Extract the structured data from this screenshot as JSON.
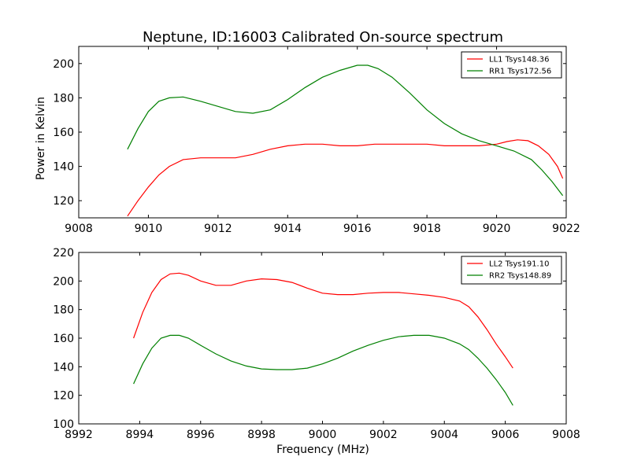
{
  "figure": {
    "title": "Neptune, ID:16003 Calibrated On-source spectrum"
  },
  "chart_data": [
    {
      "type": "line",
      "title": "Neptune, ID:16003 Calibrated On-source spectrum",
      "xlabel": "",
      "ylabel": "Power in Kelvin",
      "xlim": [
        9008,
        9022
      ],
      "ylim": [
        110,
        210
      ],
      "xticks": [
        "9008",
        "9010",
        "9012",
        "9014",
        "9016",
        "9018",
        "9020",
        "9022"
      ],
      "yticks": [
        "120",
        "140",
        "160",
        "180",
        "200"
      ],
      "legend_position": "upper-right",
      "grid": false,
      "series": [
        {
          "name": "LL1 Tsys148.36",
          "color": "#ff0000",
          "x": [
            9009.4,
            9009.7,
            9010.0,
            9010.3,
            9010.6,
            9011.0,
            9011.5,
            9012.0,
            9012.5,
            9013.0,
            9013.5,
            9014.0,
            9014.5,
            9015.0,
            9015.5,
            9016.0,
            9016.5,
            9017.0,
            9017.5,
            9018.0,
            9018.5,
            9019.0,
            9019.5,
            9020.0,
            9020.3,
            9020.6,
            9020.9,
            9021.2,
            9021.5,
            9021.75,
            9021.9
          ],
          "y": [
            111,
            120,
            128,
            135,
            140,
            144,
            145,
            145,
            145,
            147,
            150,
            152,
            153,
            153,
            152,
            152,
            153,
            153,
            153,
            153,
            152,
            152,
            152,
            153,
            154.5,
            155.5,
            155,
            152,
            147,
            140,
            133
          ]
        },
        {
          "name": "RR1 Tsys172.56",
          "color": "#008000",
          "x": [
            9009.4,
            9009.7,
            9010.0,
            9010.3,
            9010.6,
            9011.0,
            9011.5,
            9012.0,
            9012.5,
            9013.0,
            9013.5,
            9014.0,
            9014.5,
            9015.0,
            9015.5,
            9016.0,
            9016.3,
            9016.6,
            9017.0,
            9017.5,
            9018.0,
            9018.5,
            9019.0,
            9019.5,
            9020.0,
            9020.5,
            9021.0,
            9021.3,
            9021.6,
            9021.9
          ],
          "y": [
            150,
            162,
            172,
            178,
            180,
            180.5,
            178,
            175,
            172,
            171,
            173,
            179,
            186,
            192,
            196,
            199,
            199,
            197,
            192,
            183,
            173,
            165,
            159,
            155,
            152,
            149,
            144,
            138,
            131,
            123
          ]
        }
      ]
    },
    {
      "type": "line",
      "title": "",
      "xlabel": "Frequency (MHz)",
      "ylabel": "",
      "xlim": [
        8992,
        9008
      ],
      "ylim": [
        100,
        220
      ],
      "xticks": [
        "8992",
        "8994",
        "8996",
        "8998",
        "9000",
        "9002",
        "9004",
        "9006",
        "9008"
      ],
      "yticks": [
        "100",
        "120",
        "140",
        "160",
        "180",
        "200",
        "220"
      ],
      "legend_position": "upper-right",
      "grid": false,
      "series": [
        {
          "name": "LL2 Tsys191.10",
          "color": "#ff0000",
          "x": [
            8993.8,
            8994.1,
            8994.4,
            8994.7,
            8995.0,
            8995.3,
            8995.6,
            8996.0,
            8996.5,
            8997.0,
            8997.5,
            8998.0,
            8998.5,
            8999.0,
            8999.5,
            9000.0,
            9000.5,
            9001.0,
            9001.5,
            9002.0,
            9002.5,
            9003.0,
            9003.5,
            9004.0,
            9004.5,
            9004.8,
            9005.1,
            9005.4,
            9005.7,
            9006.0,
            9006.25
          ],
          "y": [
            160,
            178,
            192,
            201,
            205,
            205.5,
            204,
            200,
            197,
            197,
            200,
            201.5,
            201,
            199,
            195,
            191.5,
            190.5,
            190.5,
            191.5,
            192,
            192,
            191,
            190,
            188.5,
            186,
            182,
            175,
            166,
            156,
            147,
            139
          ]
        },
        {
          "name": "RR2 Tsys148.89",
          "color": "#008000",
          "x": [
            8993.8,
            8994.1,
            8994.4,
            8994.7,
            8995.0,
            8995.3,
            8995.6,
            8996.0,
            8996.5,
            8997.0,
            8997.5,
            8998.0,
            8998.5,
            8999.0,
            8999.5,
            9000.0,
            9000.5,
            9001.0,
            9001.5,
            9002.0,
            9002.5,
            9003.0,
            9003.5,
            9004.0,
            9004.5,
            9004.8,
            9005.1,
            9005.4,
            9005.7,
            9006.0,
            9006.25
          ],
          "y": [
            128,
            142,
            153,
            160,
            162,
            162,
            160,
            155,
            149,
            144,
            140.5,
            138.5,
            138,
            138,
            139,
            142,
            146,
            151,
            155,
            158.5,
            161,
            162,
            162,
            160,
            156,
            152,
            146,
            139,
            131,
            122,
            113
          ]
        }
      ]
    }
  ]
}
